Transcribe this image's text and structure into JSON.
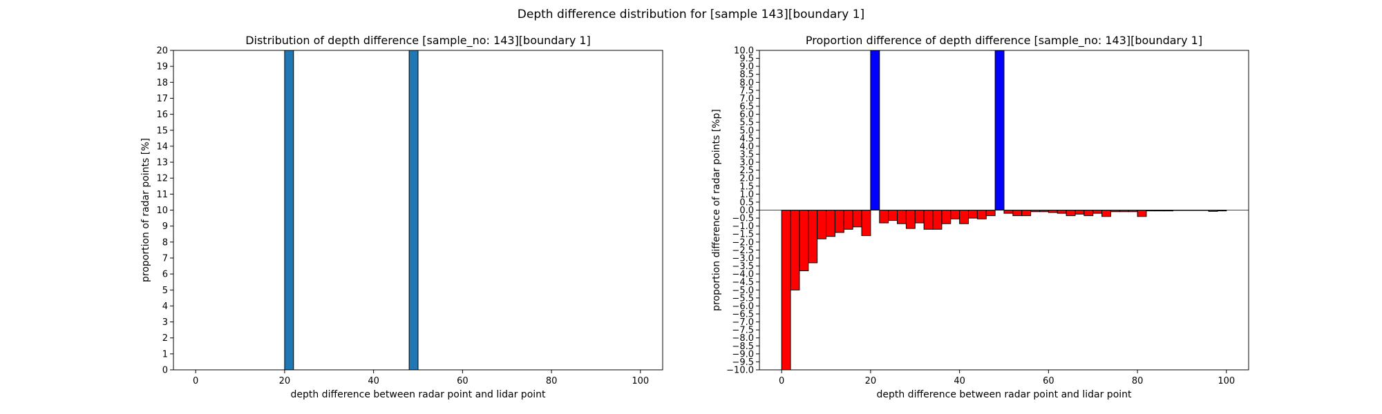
{
  "figure": {
    "suptitle": "Depth difference distribution for [sample 143][boundary 1]"
  },
  "chart_data": [
    {
      "type": "bar",
      "title": "Distribution of depth difference [sample_no: 143][boundary 1]",
      "xlabel": "depth difference between radar point and lidar point",
      "ylabel": "proportion of radar points [%]",
      "xlim": [
        -5,
        105
      ],
      "ylim": [
        0,
        20
      ],
      "xticks": [
        0,
        20,
        40,
        60,
        80,
        100
      ],
      "yticks": [
        0,
        1,
        2,
        3,
        4,
        5,
        6,
        7,
        8,
        9,
        10,
        11,
        12,
        13,
        14,
        15,
        16,
        17,
        18,
        19,
        20
      ],
      "bin_width": 2,
      "grid": false,
      "colors": {
        "bar": "#1f77b4",
        "edge": "#000000"
      },
      "bars": [
        {
          "x": 20,
          "value": 20
        },
        {
          "x": 48,
          "value": 20
        }
      ]
    },
    {
      "type": "bar",
      "title": "Proportion difference of depth difference [sample_no: 143][boundary 1]",
      "xlabel": "depth difference between radar point and lidar point",
      "ylabel": "proportion difference of radar points [%p]",
      "xlim": [
        -5,
        105
      ],
      "ylim": [
        -10,
        10
      ],
      "xticks": [
        0,
        20,
        40,
        60,
        80,
        100
      ],
      "ytick_step": 0.5,
      "bin_width": 2,
      "grid": false,
      "colors": {
        "positive": "#0000ff",
        "negative": "#ff0000",
        "edge": "#000000"
      },
      "bars": [
        {
          "x": 0,
          "value": -10
        },
        {
          "x": 2,
          "value": -5.0
        },
        {
          "x": 4,
          "value": -3.8
        },
        {
          "x": 6,
          "value": -3.3
        },
        {
          "x": 8,
          "value": -1.8
        },
        {
          "x": 10,
          "value": -1.65
        },
        {
          "x": 12,
          "value": -1.4
        },
        {
          "x": 14,
          "value": -1.2
        },
        {
          "x": 16,
          "value": -1.05
        },
        {
          "x": 18,
          "value": -1.6
        },
        {
          "x": 20,
          "value": 10
        },
        {
          "x": 22,
          "value": -0.8
        },
        {
          "x": 24,
          "value": -0.65
        },
        {
          "x": 26,
          "value": -0.85
        },
        {
          "x": 28,
          "value": -1.15
        },
        {
          "x": 30,
          "value": -0.8
        },
        {
          "x": 32,
          "value": -1.2
        },
        {
          "x": 34,
          "value": -1.2
        },
        {
          "x": 36,
          "value": -0.85
        },
        {
          "x": 38,
          "value": -0.55
        },
        {
          "x": 40,
          "value": -0.85
        },
        {
          "x": 42,
          "value": -0.5
        },
        {
          "x": 44,
          "value": -0.55
        },
        {
          "x": 46,
          "value": -0.35
        },
        {
          "x": 48,
          "value": 10
        },
        {
          "x": 50,
          "value": -0.2
        },
        {
          "x": 52,
          "value": -0.35
        },
        {
          "x": 54,
          "value": -0.35
        },
        {
          "x": 56,
          "value": -0.1
        },
        {
          "x": 58,
          "value": -0.1
        },
        {
          "x": 60,
          "value": -0.15
        },
        {
          "x": 62,
          "value": -0.2
        },
        {
          "x": 64,
          "value": -0.35
        },
        {
          "x": 66,
          "value": -0.25
        },
        {
          "x": 68,
          "value": -0.35
        },
        {
          "x": 70,
          "value": -0.2
        },
        {
          "x": 72,
          "value": -0.4
        },
        {
          "x": 74,
          "value": -0.1
        },
        {
          "x": 76,
          "value": -0.1
        },
        {
          "x": 78,
          "value": -0.1
        },
        {
          "x": 80,
          "value": -0.4
        },
        {
          "x": 82,
          "value": -0.05
        },
        {
          "x": 84,
          "value": -0.05
        },
        {
          "x": 86,
          "value": -0.05
        },
        {
          "x": 88,
          "value": -0.02
        },
        {
          "x": 90,
          "value": -0.02
        },
        {
          "x": 92,
          "value": -0.02
        },
        {
          "x": 94,
          "value": -0.02
        },
        {
          "x": 96,
          "value": -0.08
        },
        {
          "x": 98,
          "value": -0.05
        }
      ]
    }
  ]
}
